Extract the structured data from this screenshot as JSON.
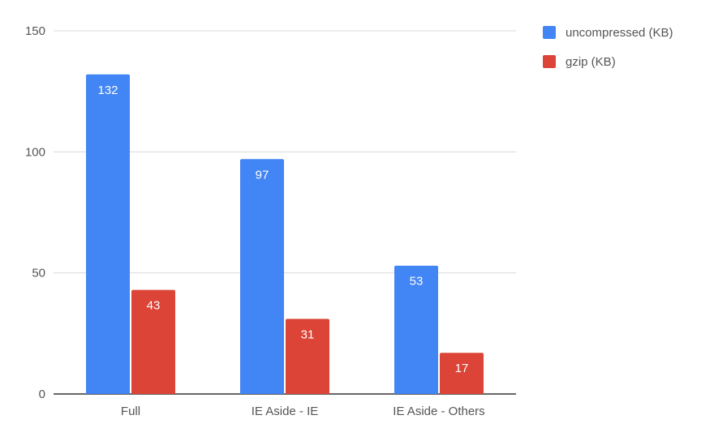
{
  "chart_data": {
    "type": "bar",
    "categories": [
      "Full",
      "IE Aside - IE",
      "IE Aside - Others"
    ],
    "series": [
      {
        "name": "uncompressed (KB)",
        "values": [
          132,
          97,
          53
        ],
        "color": "#4285f4"
      },
      {
        "name": "gzip (KB)",
        "values": [
          43,
          31,
          17
        ],
        "color": "#db4437"
      }
    ],
    "ylim": [
      0,
      150
    ],
    "yticks": [
      0,
      50,
      100,
      150
    ],
    "grid": true,
    "legend_position": "top-right",
    "title": "",
    "xlabel": "",
    "ylabel": ""
  }
}
